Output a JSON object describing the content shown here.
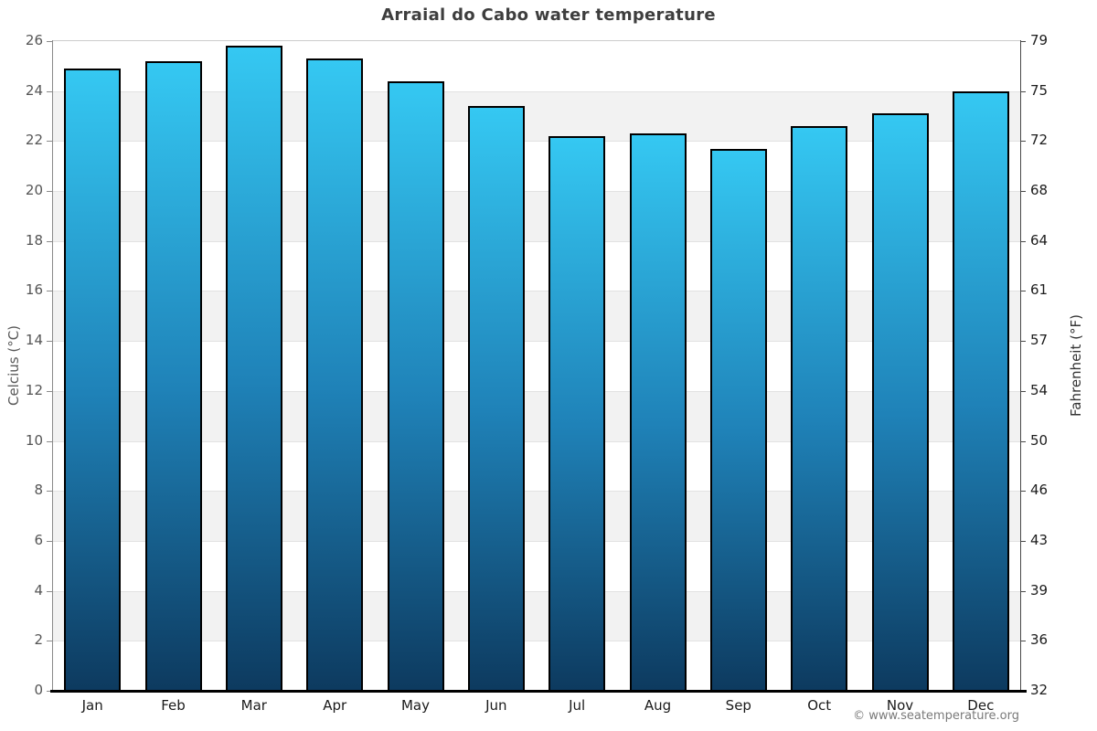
{
  "chart_data": {
    "type": "bar",
    "title": "Arraial do Cabo water temperature",
    "categories": [
      "Jan",
      "Feb",
      "Mar",
      "Apr",
      "May",
      "Jun",
      "Jul",
      "Aug",
      "Sep",
      "Oct",
      "Nov",
      "Dec"
    ],
    "values": [
      24.9,
      25.2,
      25.8,
      25.3,
      24.4,
      23.4,
      22.2,
      22.3,
      21.7,
      22.6,
      23.1,
      24.0
    ],
    "ylabel_left": "Celcius (°C)",
    "ylabel_right": "Fahrenheit (°F)",
    "ylim": [
      0,
      26
    ],
    "yticks_celsius": [
      0,
      2,
      4,
      6,
      8,
      10,
      12,
      14,
      16,
      18,
      20,
      22,
      24,
      26
    ],
    "yticks_fahrenheit": [
      32,
      36,
      39,
      43,
      46,
      50,
      54,
      57,
      61,
      64,
      68,
      72,
      75,
      79
    ],
    "grid": "alternating horizontal gray bands every 2 degrees",
    "legend_position": "none",
    "colors": {
      "bar_gradient_top": "#35c8f2",
      "bar_gradient_mid": "#1f82b8",
      "bar_gradient_bottom": "#0d3a5f",
      "bar_border": "#000000",
      "band_gray": "#f2f2f2",
      "axis_bottom": "#000000",
      "title_text": "#3e3e3e"
    }
  },
  "footer": {
    "watermark": "© www.seatemperature.org"
  }
}
